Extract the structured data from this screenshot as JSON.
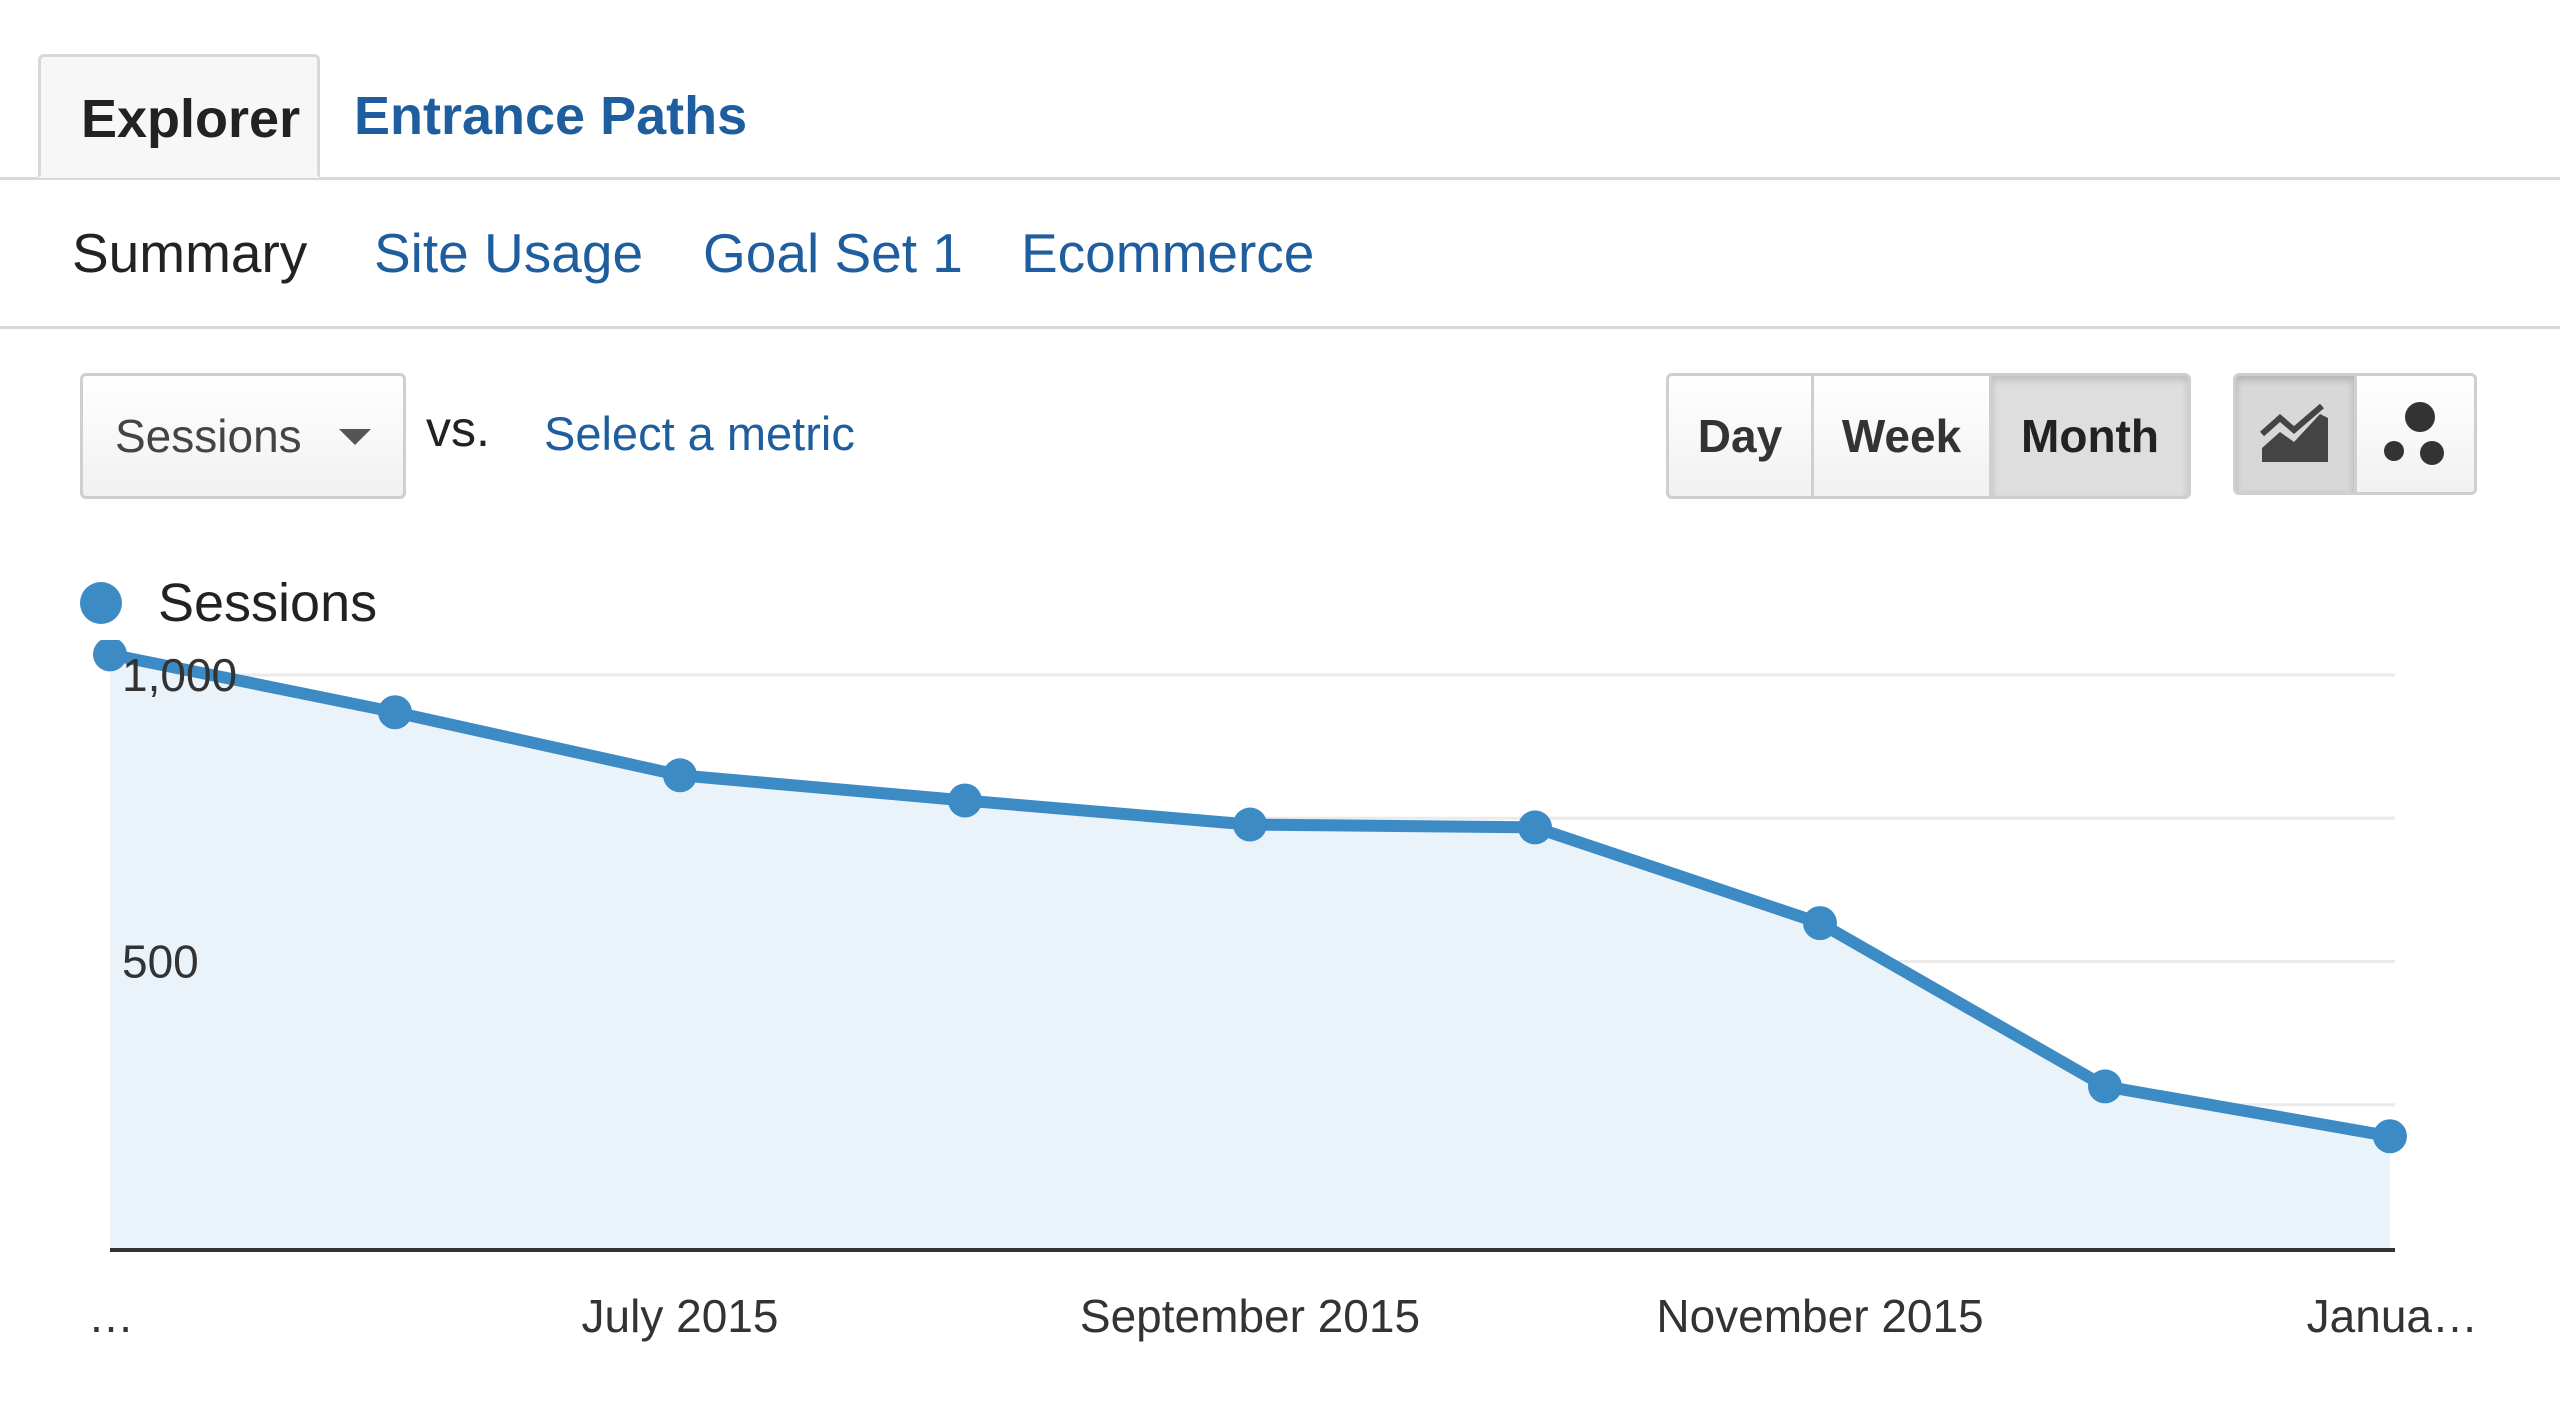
{
  "tabs": [
    {
      "label": "Explorer",
      "active": true
    },
    {
      "label": "Entrance Paths",
      "active": false
    }
  ],
  "subnav": [
    {
      "label": "Summary",
      "current": true
    },
    {
      "label": "Site Usage",
      "current": false
    },
    {
      "label": "Goal Set 1",
      "current": false
    },
    {
      "label": "Ecommerce",
      "current": false
    }
  ],
  "controls": {
    "metric": "Sessions",
    "vs_label": "vs.",
    "compare_link": "Select a metric",
    "periods": [
      {
        "label": "Day",
        "active": false
      },
      {
        "label": "Week",
        "active": false
      },
      {
        "label": "Month",
        "active": true
      }
    ],
    "chart_views": [
      {
        "icon": "line-chart-icon",
        "active": true
      },
      {
        "icon": "motion-chart-icon",
        "active": false
      }
    ]
  },
  "colors": {
    "series": "#3d8bc5",
    "area_fill": "#ebf3fa",
    "link": "#1f5e9e",
    "gridline": "#ebebeb",
    "axis": "#333333"
  },
  "chart_data": {
    "type": "area",
    "legend_position": "top-left",
    "grid": true,
    "series": [
      {
        "name": "Sessions",
        "values": [
          1036,
          935,
          825,
          781,
          739,
          734,
          567,
          282,
          195
        ]
      }
    ],
    "x_tick_labels": [
      "…",
      "July 2015",
      "September 2015",
      "November 2015",
      "Janua…"
    ],
    "x_tick_positions": [
      0,
      2,
      4,
      6,
      8
    ],
    "y_tick_labels": [
      "1,000",
      "500"
    ],
    "y_tick_values": [
      1000,
      500
    ],
    "ylim": [
      0,
      1000
    ]
  }
}
